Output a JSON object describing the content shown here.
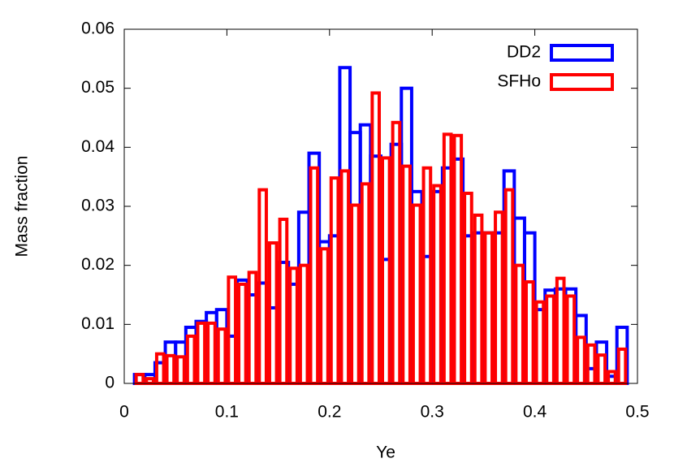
{
  "chart_data": {
    "type": "histogram",
    "x_label": "Ye",
    "y_label": "Mass fraction",
    "bins": [
      0.01,
      0.02,
      0.03,
      0.04,
      0.05,
      0.06,
      0.07,
      0.08,
      0.09,
      0.1,
      0.11,
      0.12,
      0.13,
      0.14,
      0.15,
      0.16,
      0.17,
      0.18,
      0.19,
      0.2,
      0.21,
      0.22,
      0.23,
      0.24,
      0.25,
      0.26,
      0.27,
      0.28,
      0.29,
      0.3,
      0.31,
      0.32,
      0.33,
      0.34,
      0.35,
      0.36,
      0.37,
      0.38,
      0.39,
      0.4,
      0.41,
      0.42,
      0.43,
      0.44,
      0.45,
      0.46,
      0.47,
      0.48,
      0.49
    ],
    "series": [
      {
        "name": "DD2",
        "color": "#0000ff",
        "values": [
          0.0015,
          0.0015,
          0.0035,
          0.007,
          0.007,
          0.0095,
          0.0105,
          0.012,
          0.0125,
          0.008,
          0.0175,
          0.015,
          0.017,
          0.0128,
          0.0205,
          0.0168,
          0.029,
          0.039,
          0.024,
          0.025,
          0.0535,
          0.0425,
          0.0438,
          0.0385,
          0.021,
          0.0405,
          0.05,
          0.0325,
          0.0215,
          0.0325,
          0.0365,
          0.038,
          0.025,
          0.0255,
          0.0255,
          0.0255,
          0.036,
          0.028,
          0.0255,
          0.0125,
          0.0158,
          0.016,
          0.016,
          0.0115,
          0.0025,
          0.007,
          0.0012,
          0.0095
        ]
      },
      {
        "name": "SFHo",
        "color": "#ff0000",
        "values": [
          0.0015,
          0.0008,
          0.005,
          0.0047,
          0.0045,
          0.008,
          0.0102,
          0.0102,
          0.0092,
          0.018,
          0.0168,
          0.0188,
          0.0328,
          0.0238,
          0.0278,
          0.0195,
          0.02,
          0.0365,
          0.0228,
          0.0348,
          0.036,
          0.0302,
          0.0338,
          0.0492,
          0.0382,
          0.0442,
          0.0368,
          0.0302,
          0.0365,
          0.0335,
          0.0422,
          0.042,
          0.0322,
          0.0285,
          0.0255,
          0.029,
          0.0328,
          0.02,
          0.0172,
          0.0138,
          0.0148,
          0.0178,
          0.0148,
          0.0078,
          0.0065,
          0.0048,
          0.002,
          0.0058
        ]
      }
    ],
    "xlim": [
      0,
      0.5
    ],
    "ylim": [
      0,
      0.06
    ],
    "xticks": [
      0,
      0.1,
      0.2,
      0.3,
      0.4,
      0.5
    ],
    "yticks": [
      0,
      0.01,
      0.02,
      0.03,
      0.04,
      0.05,
      0.06
    ],
    "legend": "upper-right"
  }
}
